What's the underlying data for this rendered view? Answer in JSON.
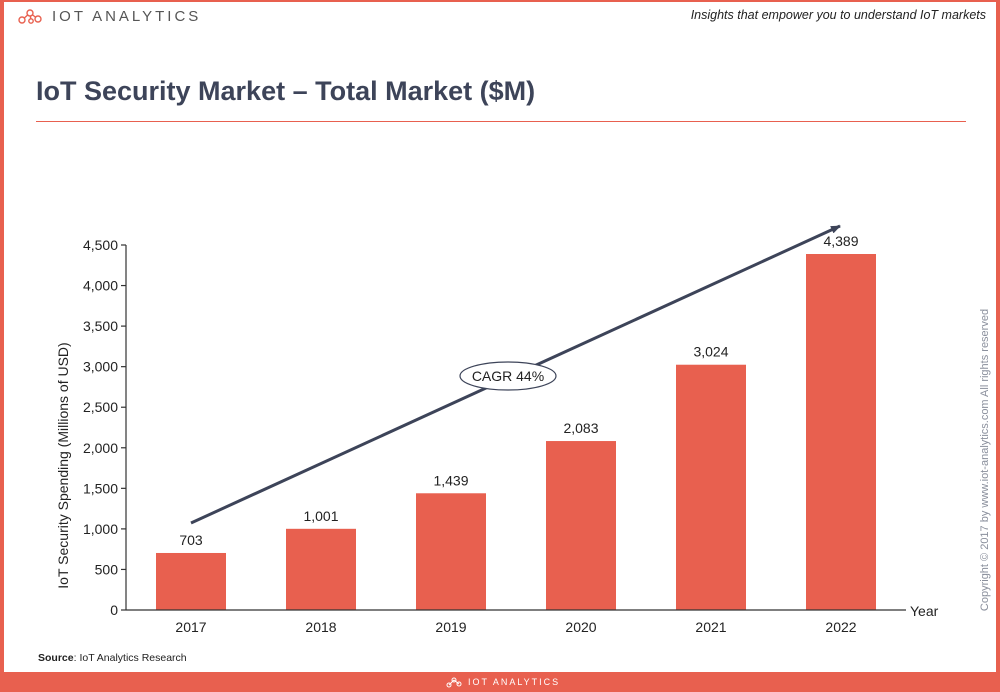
{
  "header": {
    "logo_text": "IOT ANALYTICS",
    "tagline": "Insights that empower you to understand IoT markets"
  },
  "title": "IoT Security Market – Total Market ($M)",
  "source": {
    "label": "Source",
    "text": ": IoT Analytics Research"
  },
  "copyright": "Copyright © 2017 by www.iot-analytics.com All rights reserved",
  "footer": {
    "logo_text": "IOT ANALYTICS"
  },
  "colors": {
    "accent": "#e8604f",
    "title": "#3d4459",
    "arrow": "#3d4459"
  },
  "chart_data": {
    "type": "bar",
    "categories": [
      "2017",
      "2018",
      "2019",
      "2020",
      "2021",
      "2022"
    ],
    "values": [
      703,
      1001,
      1439,
      2083,
      3024,
      4389
    ],
    "value_labels": [
      "703",
      "1,001",
      "1,439",
      "2,083",
      "3,024",
      "4,389"
    ],
    "xlabel": "Year",
    "ylabel": "IoT Security Spending (Millions of USD)",
    "ylim": [
      0,
      4500
    ],
    "yticks": [
      0,
      500,
      1000,
      1500,
      2000,
      2500,
      3000,
      3500,
      4000,
      4500
    ],
    "ytick_labels": [
      "0",
      "500",
      "1,000",
      "1,500",
      "2,000",
      "2,500",
      "3,000",
      "3,500",
      "4,000",
      "4,500"
    ],
    "annotation": "CAGR 44%",
    "grid": false,
    "legend": "none"
  }
}
